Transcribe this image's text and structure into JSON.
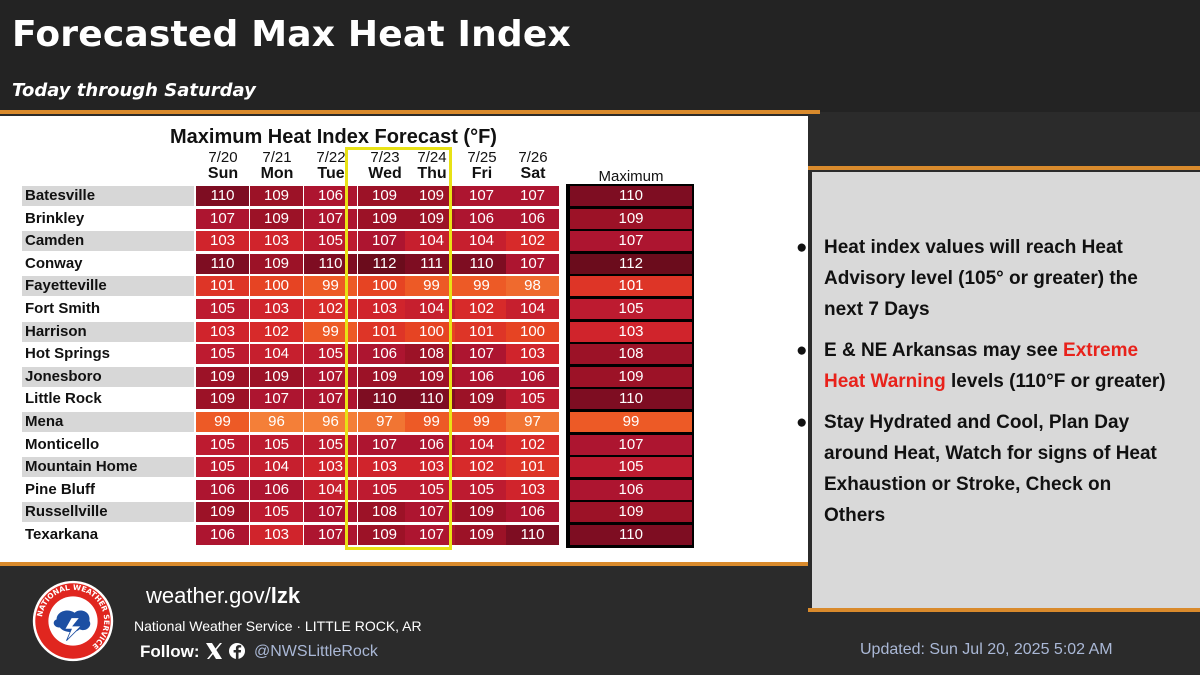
{
  "title": "Forecasted Max Heat Index",
  "subtitle": "Today through Saturday",
  "table": {
    "title": "Maximum Heat Index Forecast (°F)",
    "days": [
      {
        "date": "7/20",
        "day": "Sun"
      },
      {
        "date": "7/21",
        "day": "Mon"
      },
      {
        "date": "7/22",
        "day": "Tue"
      },
      {
        "date": "7/23",
        "day": "Wed"
      },
      {
        "date": "7/24",
        "day": "Thu"
      },
      {
        "date": "7/25",
        "day": "Fri"
      },
      {
        "date": "7/26",
        "day": "Sat"
      }
    ],
    "max_header": "Maximum",
    "rows": [
      {
        "city": "Batesville",
        "values": [
          110,
          109,
          106,
          109,
          109,
          107,
          107
        ],
        "max": 110
      },
      {
        "city": "Brinkley",
        "values": [
          107,
          109,
          107,
          109,
          109,
          106,
          106
        ],
        "max": 109
      },
      {
        "city": "Camden",
        "values": [
          103,
          103,
          105,
          107,
          104,
          104,
          102
        ],
        "max": 107
      },
      {
        "city": "Conway",
        "values": [
          110,
          109,
          110,
          112,
          111,
          110,
          107
        ],
        "max": 112
      },
      {
        "city": "Fayetteville",
        "values": [
          101,
          100,
          99,
          100,
          99,
          99,
          98
        ],
        "max": 101
      },
      {
        "city": "Fort Smith",
        "values": [
          105,
          103,
          102,
          103,
          104,
          102,
          104
        ],
        "max": 105
      },
      {
        "city": "Harrison",
        "values": [
          103,
          102,
          99,
          101,
          100,
          101,
          100
        ],
        "max": 103
      },
      {
        "city": "Hot Springs",
        "values": [
          105,
          104,
          105,
          106,
          108,
          107,
          103
        ],
        "max": 108
      },
      {
        "city": "Jonesboro",
        "values": [
          109,
          109,
          107,
          109,
          109,
          106,
          106
        ],
        "max": 109
      },
      {
        "city": "Little Rock",
        "values": [
          109,
          107,
          107,
          110,
          110,
          109,
          105
        ],
        "max": 110
      },
      {
        "city": "Mena",
        "values": [
          99,
          96,
          96,
          97,
          99,
          99,
          97
        ],
        "max": 99
      },
      {
        "city": "Monticello",
        "values": [
          105,
          105,
          105,
          107,
          106,
          104,
          102
        ],
        "max": 107
      },
      {
        "city": "Mountain Home",
        "values": [
          105,
          104,
          103,
          103,
          103,
          102,
          101
        ],
        "max": 105
      },
      {
        "city": "Pine Bluff",
        "values": [
          106,
          106,
          104,
          105,
          105,
          105,
          103
        ],
        "max": 106
      },
      {
        "city": "Russellville",
        "values": [
          109,
          105,
          107,
          108,
          107,
          109,
          106
        ],
        "max": 109
      },
      {
        "city": "Texarkana",
        "values": [
          106,
          103,
          107,
          109,
          107,
          109,
          110
        ],
        "max": 110
      }
    ]
  },
  "bullets": [
    {
      "pre": "Heat index values will reach Heat Advisory level (105° or greater) the next 7 Days",
      "highlight": "",
      "post": ""
    },
    {
      "pre": "E & NE Arkansas may see ",
      "highlight": "Extreme Heat Warning",
      "post": " levels (110°F or greater)"
    },
    {
      "pre": "Stay Hydrated and Cool, Plan Day around Heat, Watch for signs of Heat Exhaustion or Stroke, Check on Others",
      "highlight": "",
      "post": ""
    }
  ],
  "footer": {
    "url_prefix": "weather.gov/",
    "url_suffix": "lzk",
    "office": "National Weather Service · LITTLE ROCK, AR",
    "follow_label": "Follow:",
    "handle": "@NWSLittleRock",
    "updated": "Updated: Sun Jul 20, 2025 5:02 AM"
  },
  "logo_text": "NATIONAL WEATHER SERVICE",
  "colors": {
    "accent_stripe": "#d98a2c",
    "extreme_text": "#e8221b",
    "highlight_box": "#e8e215"
  }
}
